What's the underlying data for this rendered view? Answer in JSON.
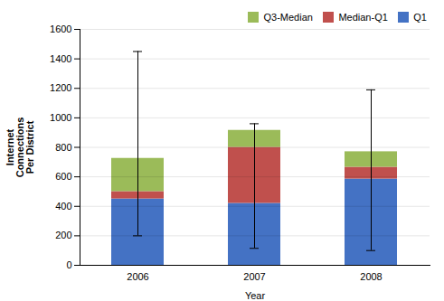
{
  "chart_data": {
    "type": "bar",
    "stacked": true,
    "categories": [
      "2006",
      "2007",
      "2008"
    ],
    "series": [
      {
        "name": "Q1",
        "color": "#4472C4",
        "values": [
          450,
          420,
          585
        ]
      },
      {
        "name": "Median-Q1",
        "color": "#C0504D",
        "values": [
          50,
          380,
          80
        ]
      },
      {
        "name": "Q3-Median",
        "color": "#9BBB59",
        "values": [
          225,
          115,
          105
        ]
      }
    ],
    "error_low": [
      200,
      115,
      100
    ],
    "error_high": [
      1450,
      960,
      1190
    ],
    "xlabel": "Year",
    "ylabel": "Internet\nConnections\nPer District",
    "ylim": [
      0,
      1600
    ],
    "yticks": [
      0,
      200,
      400,
      600,
      800,
      1000,
      1200,
      1400,
      1600
    ],
    "grid": true,
    "legend": "upper right"
  }
}
